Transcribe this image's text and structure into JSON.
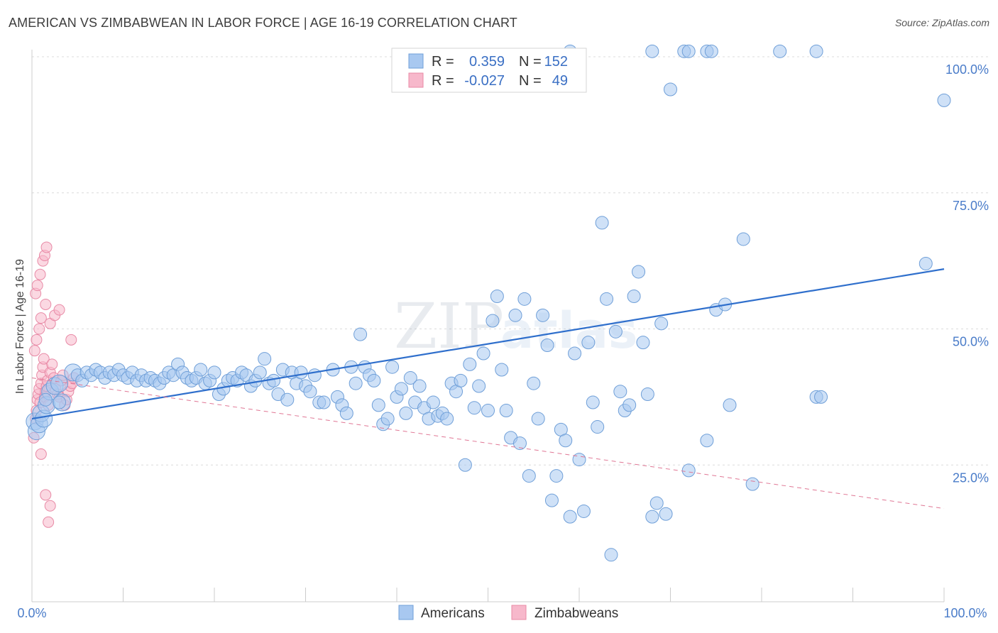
{
  "header": {
    "title": "AMERICAN VS ZIMBABWEAN IN LABOR FORCE | AGE 16-19 CORRELATION CHART",
    "source": "Source: ZipAtlas.com"
  },
  "colors": {
    "americans_fill": "#a8c8f0",
    "americans_stroke": "#6f9fd8",
    "americans_line": "#2f6fcc",
    "zimbabweans_fill": "#f7b8cb",
    "zimbabweans_stroke": "#e88aa6",
    "zimbabweans_line": "#e07795",
    "value_text": "#3a6fc4",
    "grid": "#dcdcdc"
  },
  "watermark": {
    "zip": "ZIP",
    "atlas": "atlas"
  },
  "chart_data": {
    "type": "scatter",
    "title": "AMERICAN VS ZIMBABWEAN IN LABOR FORCE | AGE 16-19 CORRELATION CHART",
    "xlabel": "",
    "ylabel": "In Labor Force | Age 16-19",
    "xlim": [
      0,
      100
    ],
    "ylim": [
      0,
      102
    ],
    "x_tick_labels": [
      "0.0%",
      "100.0%"
    ],
    "y_ticks": [
      25,
      50,
      75,
      100
    ],
    "y_tick_labels": [
      "25.0%",
      "50.0%",
      "75.0%",
      "100.0%"
    ],
    "grid": true,
    "legend": {
      "position": "top-center",
      "entries": [
        {
          "r_label": "R =",
          "r_value": "0.359",
          "n_label": "N =",
          "n_value": "152"
        },
        {
          "r_label": "R =",
          "r_value": "-0.027",
          "n_label": "N =",
          "n_value": "49"
        }
      ]
    },
    "bottom_legend": [
      "Americans",
      "Zimbabweans"
    ],
    "series": [
      {
        "name": "Americans",
        "trend": {
          "x": [
            0,
            100
          ],
          "y": [
            33.5,
            61.0
          ],
          "style": "solid"
        },
        "points": [
          [
            0.3,
            33.0
          ],
          [
            0.5,
            31.2
          ],
          [
            0.8,
            32.5
          ],
          [
            1.0,
            34.5
          ],
          [
            1.3,
            33.5
          ],
          [
            1.6,
            36.0
          ],
          [
            2.0,
            38.5
          ],
          [
            2.5,
            39.5
          ],
          [
            3.0,
            40.0
          ],
          [
            3.3,
            36.5
          ],
          [
            4.5,
            42.0
          ],
          [
            5.0,
            41.5
          ],
          [
            5.5,
            40.5
          ],
          [
            6.0,
            42.0
          ],
          [
            6.5,
            41.5
          ],
          [
            7.0,
            42.5
          ],
          [
            7.5,
            42.0
          ],
          [
            8.0,
            41.0
          ],
          [
            8.5,
            42.0
          ],
          [
            9.0,
            41.5
          ],
          [
            9.5,
            42.5
          ],
          [
            10.0,
            41.5
          ],
          [
            10.5,
            41.0
          ],
          [
            11.0,
            42.0
          ],
          [
            11.5,
            40.5
          ],
          [
            12.0,
            41.5
          ],
          [
            12.5,
            40.5
          ],
          [
            13.0,
            41.0
          ],
          [
            13.5,
            40.5
          ],
          [
            14.0,
            40.0
          ],
          [
            14.5,
            41.0
          ],
          [
            15.0,
            42.0
          ],
          [
            15.5,
            41.5
          ],
          [
            16.0,
            43.5
          ],
          [
            16.5,
            42.0
          ],
          [
            17.0,
            41.0
          ],
          [
            17.5,
            40.5
          ],
          [
            18.0,
            41.0
          ],
          [
            18.5,
            42.5
          ],
          [
            19.0,
            40.0
          ],
          [
            19.5,
            40.5
          ],
          [
            20.0,
            42.0
          ],
          [
            20.5,
            38.0
          ],
          [
            21.0,
            39.0
          ],
          [
            21.5,
            40.5
          ],
          [
            22.0,
            41.0
          ],
          [
            22.5,
            40.5
          ],
          [
            23.0,
            42.0
          ],
          [
            23.5,
            41.5
          ],
          [
            24.0,
            39.5
          ],
          [
            24.5,
            40.5
          ],
          [
            25.0,
            42.0
          ],
          [
            25.5,
            44.5
          ],
          [
            26.0,
            40.0
          ],
          [
            26.5,
            40.5
          ],
          [
            27.0,
            38.0
          ],
          [
            27.5,
            42.5
          ],
          [
            28.0,
            37.0
          ],
          [
            28.5,
            42.0
          ],
          [
            29.0,
            40.0
          ],
          [
            29.5,
            42.0
          ],
          [
            30.0,
            39.5
          ],
          [
            30.5,
            38.5
          ],
          [
            31.0,
            41.5
          ],
          [
            31.5,
            36.5
          ],
          [
            32.0,
            36.5
          ],
          [
            33.0,
            42.5
          ],
          [
            33.5,
            37.5
          ],
          [
            34.0,
            36.0
          ],
          [
            34.5,
            34.5
          ],
          [
            35.0,
            43.0
          ],
          [
            35.5,
            40.0
          ],
          [
            36.0,
            49.0
          ],
          [
            36.5,
            43.0
          ],
          [
            37.0,
            41.5
          ],
          [
            37.5,
            40.5
          ],
          [
            38.0,
            36.0
          ],
          [
            38.5,
            32.5
          ],
          [
            39.0,
            33.5
          ],
          [
            39.5,
            43.0
          ],
          [
            40.0,
            37.5
          ],
          [
            40.5,
            39.0
          ],
          [
            41.0,
            34.5
          ],
          [
            41.5,
            41.0
          ],
          [
            42.0,
            36.5
          ],
          [
            42.5,
            39.5
          ],
          [
            43.0,
            35.5
          ],
          [
            43.5,
            33.5
          ],
          [
            44.0,
            36.5
          ],
          [
            44.5,
            34.0
          ],
          [
            45.0,
            34.5
          ],
          [
            45.5,
            33.5
          ],
          [
            46.0,
            40.0
          ],
          [
            46.5,
            38.5
          ],
          [
            47.0,
            40.5
          ],
          [
            47.5,
            25.0
          ],
          [
            48.0,
            43.5
          ],
          [
            48.5,
            35.5
          ],
          [
            49.0,
            39.5
          ],
          [
            49.5,
            45.5
          ],
          [
            50.0,
            35.0
          ],
          [
            50.5,
            51.5
          ],
          [
            51.0,
            56.0
          ],
          [
            51.5,
            42.5
          ],
          [
            52.0,
            35.0
          ],
          [
            52.5,
            30.0
          ],
          [
            53.0,
            52.5
          ],
          [
            53.5,
            29.0
          ],
          [
            54.0,
            55.5
          ],
          [
            54.5,
            23.0
          ],
          [
            55.0,
            40.0
          ],
          [
            55.5,
            33.5
          ],
          [
            56.0,
            52.5
          ],
          [
            56.5,
            47.0
          ],
          [
            57.0,
            18.5
          ],
          [
            57.5,
            23.0
          ],
          [
            58.0,
            31.5
          ],
          [
            58.5,
            29.5
          ],
          [
            59.0,
            15.5
          ],
          [
            59.5,
            45.5
          ],
          [
            60.0,
            26.0
          ],
          [
            60.5,
            16.5
          ],
          [
            61.0,
            47.5
          ],
          [
            61.5,
            36.5
          ],
          [
            62.0,
            32.0
          ],
          [
            62.5,
            69.5
          ],
          [
            63.0,
            55.5
          ],
          [
            63.5,
            8.5
          ],
          [
            64.0,
            49.5
          ],
          [
            64.5,
            38.5
          ],
          [
            65.0,
            35.0
          ],
          [
            65.5,
            36.0
          ],
          [
            66.0,
            56.0
          ],
          [
            66.5,
            60.5
          ],
          [
            67.0,
            47.5
          ],
          [
            67.5,
            38.0
          ],
          [
            68.0,
            15.5
          ],
          [
            68.5,
            18.0
          ],
          [
            69.0,
            51.0
          ],
          [
            69.5,
            16.0
          ],
          [
            72.0,
            24.0
          ],
          [
            74.0,
            29.5
          ],
          [
            75.0,
            53.5
          ],
          [
            76.0,
            54.5
          ],
          [
            76.5,
            36.0
          ],
          [
            78.0,
            66.5
          ],
          [
            79.0,
            21.5
          ],
          [
            86.0,
            37.5
          ],
          [
            86.5,
            37.5
          ],
          [
            98.0,
            62.0
          ],
          [
            100.0,
            92.0
          ],
          [
            68.0,
            101.0
          ],
          [
            70.0,
            94.0
          ],
          [
            71.5,
            101.0
          ],
          [
            72.0,
            101.0
          ],
          [
            74.0,
            101.0
          ],
          [
            74.5,
            101.0
          ],
          [
            82.0,
            101.0
          ],
          [
            86.0,
            101.0
          ],
          [
            59.0,
            101.0
          ],
          [
            1.5,
            37.0
          ],
          [
            3.0,
            36.5
          ]
        ]
      },
      {
        "name": "Zimbabweans",
        "trend": {
          "x": [
            0,
            100
          ],
          "y": [
            41.0,
            17.0
          ],
          "style": "dashed"
        },
        "points": [
          [
            0.2,
            30.0
          ],
          [
            0.4,
            33.5
          ],
          [
            0.5,
            35.0
          ],
          [
            0.6,
            37.0
          ],
          [
            0.7,
            38.0
          ],
          [
            0.8,
            39.0
          ],
          [
            0.9,
            36.5
          ],
          [
            1.0,
            40.0
          ],
          [
            1.1,
            41.5
          ],
          [
            1.2,
            43.0
          ],
          [
            1.3,
            44.5
          ],
          [
            1.4,
            37.5
          ],
          [
            1.5,
            38.5
          ],
          [
            1.6,
            39.5
          ],
          [
            1.7,
            40.5
          ],
          [
            1.8,
            36.0
          ],
          [
            2.0,
            42.0
          ],
          [
            2.2,
            43.5
          ],
          [
            2.4,
            41.0
          ],
          [
            2.6,
            39.0
          ],
          [
            2.8,
            38.0
          ],
          [
            3.0,
            37.5
          ],
          [
            3.2,
            40.5
          ],
          [
            3.4,
            41.5
          ],
          [
            3.6,
            36.0
          ],
          [
            3.8,
            37.0
          ],
          [
            4.0,
            38.5
          ],
          [
            4.2,
            39.5
          ],
          [
            4.4,
            40.0
          ],
          [
            4.6,
            41.0
          ],
          [
            0.3,
            46.0
          ],
          [
            0.5,
            48.0
          ],
          [
            0.8,
            50.0
          ],
          [
            1.0,
            52.0
          ],
          [
            1.5,
            54.5
          ],
          [
            2.0,
            51.0
          ],
          [
            2.5,
            52.5
          ],
          [
            3.0,
            53.5
          ],
          [
            0.4,
            56.5
          ],
          [
            0.6,
            58.0
          ],
          [
            0.9,
            60.0
          ],
          [
            1.2,
            62.5
          ],
          [
            1.4,
            63.5
          ],
          [
            1.6,
            65.0
          ],
          [
            1.0,
            27.0
          ],
          [
            1.5,
            19.5
          ],
          [
            2.0,
            17.5
          ],
          [
            1.8,
            14.5
          ],
          [
            4.3,
            48.0
          ]
        ]
      }
    ]
  }
}
